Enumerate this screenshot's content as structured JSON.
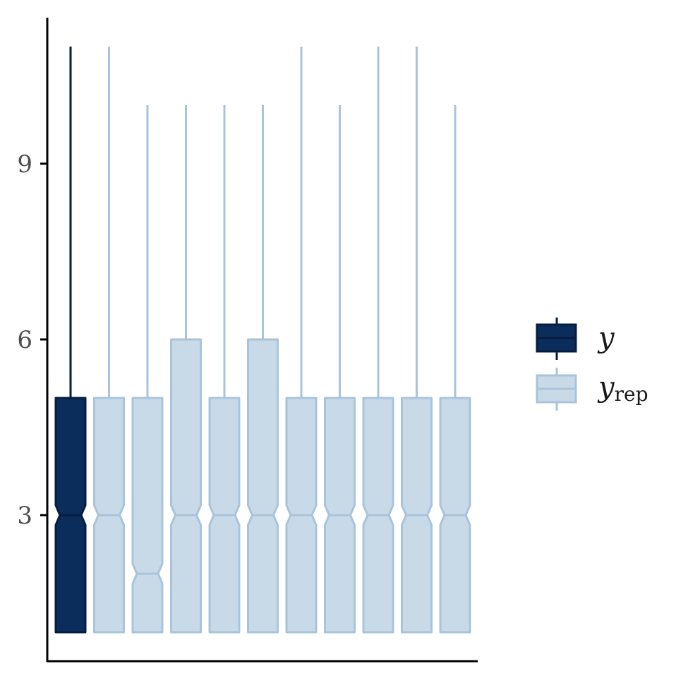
{
  "chart_data": {
    "type": "boxplot",
    "title": "",
    "xlabel": "",
    "ylabel": "",
    "ylim": [
      0.5,
      11.5
    ],
    "yticks": [
      3,
      6,
      9
    ],
    "grid": false,
    "legend_position": "right",
    "legend": [
      {
        "key": "y",
        "label": "y",
        "subscript": "",
        "fill": "#0b2d5c",
        "stroke": "#061d40"
      },
      {
        "key": "yrep",
        "label": "y",
        "subscript": "rep",
        "fill": "#c8dae8",
        "stroke": "#a9c4da"
      }
    ],
    "boxes": [
      {
        "series": "y",
        "min": 1,
        "q1": 1,
        "median": 3,
        "q3": 5,
        "max": 11
      },
      {
        "series": "yrep",
        "min": 1,
        "q1": 1,
        "median": 3,
        "q3": 5,
        "max": 11
      },
      {
        "series": "yrep",
        "min": 1,
        "q1": 1,
        "median": 2,
        "q3": 5,
        "max": 10
      },
      {
        "series": "yrep",
        "min": 1,
        "q1": 1,
        "median": 3,
        "q3": 6,
        "max": 10
      },
      {
        "series": "yrep",
        "min": 1,
        "q1": 1,
        "median": 3,
        "q3": 5,
        "max": 10
      },
      {
        "series": "yrep",
        "min": 1,
        "q1": 1,
        "median": 3,
        "q3": 6,
        "max": 10
      },
      {
        "series": "yrep",
        "min": 1,
        "q1": 1,
        "median": 3,
        "q3": 5,
        "max": 11
      },
      {
        "series": "yrep",
        "min": 1,
        "q1": 1,
        "median": 3,
        "q3": 5,
        "max": 10
      },
      {
        "series": "yrep",
        "min": 1,
        "q1": 1,
        "median": 3,
        "q3": 5,
        "max": 11
      },
      {
        "series": "yrep",
        "min": 1,
        "q1": 1,
        "median": 3,
        "q3": 5,
        "max": 11
      },
      {
        "series": "yrep",
        "min": 1,
        "q1": 1,
        "median": 3,
        "q3": 5,
        "max": 10
      }
    ]
  }
}
